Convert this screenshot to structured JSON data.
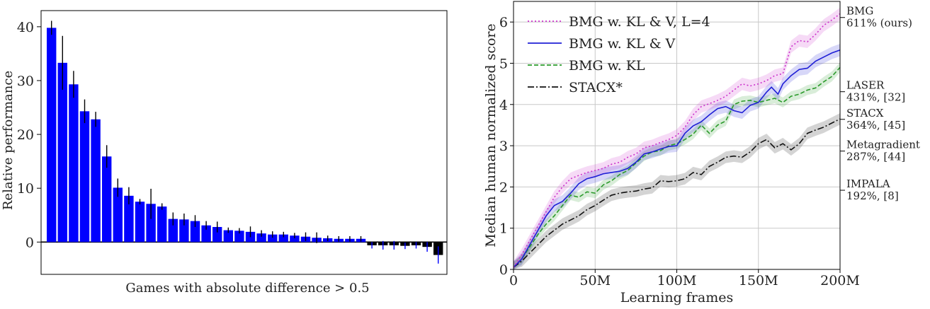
{
  "chart_data": [
    {
      "type": "bar",
      "title": "",
      "xlabel": "Games with absolute difference > 0.5",
      "ylabel": "Relative performance",
      "ylim": [
        -6,
        43
      ],
      "yticks": [
        0,
        10,
        20,
        30,
        40
      ],
      "grid": false,
      "bar_color": "#0000ff",
      "negative_bar_color": "#000000",
      "error_color": "#000000",
      "negative_error_color": "#0000ff",
      "values": [
        39.8,
        33.3,
        29.3,
        24.3,
        22.8,
        15.9,
        10.1,
        8.6,
        7.5,
        7.1,
        6.6,
        4.3,
        4.2,
        3.9,
        3.1,
        2.8,
        2.2,
        2.1,
        1.9,
        1.6,
        1.4,
        1.4,
        1.2,
        1.0,
        0.8,
        0.7,
        0.6,
        0.6,
        0.6,
        -0.6,
        -0.6,
        -0.6,
        -0.7,
        -0.6,
        -0.9,
        -2.4
      ],
      "errors": [
        1.3,
        5.0,
        2.5,
        2.2,
        1.4,
        2.1,
        1.7,
        1.6,
        0.5,
        2.8,
        0.6,
        1.2,
        1.1,
        1.1,
        0.8,
        1.0,
        0.5,
        0.5,
        1.0,
        0.6,
        0.6,
        0.5,
        0.5,
        0.8,
        1.0,
        0.5,
        0.5,
        0.5,
        0.5,
        0.6,
        0.8,
        0.8,
        0.6,
        0.6,
        0.9,
        1.6
      ]
    },
    {
      "type": "line",
      "title": "",
      "xlabel": "Learning frames",
      "ylabel": "Median human normalized score",
      "xlim": [
        0,
        200
      ],
      "ylim": [
        0,
        6.5
      ],
      "xticks": [
        0,
        50,
        100,
        150,
        200
      ],
      "xtick_labels": [
        "0",
        "50M",
        "100M",
        "150M",
        "200M"
      ],
      "yticks": [
        0,
        1,
        2,
        3,
        4,
        5,
        6
      ],
      "grid": true,
      "legend_position": "top-left",
      "series": [
        {
          "name": "BMG w. KL & V, L=4",
          "color": "#cc33cc",
          "dash": "dotted",
          "band": 0.15,
          "points": [
            [
              0,
              0.05
            ],
            [
              5,
              0.35
            ],
            [
              10,
              0.7
            ],
            [
              15,
              1.05
            ],
            [
              20,
              1.4
            ],
            [
              25,
              1.75
            ],
            [
              30,
              2.0
            ],
            [
              35,
              2.2
            ],
            [
              40,
              2.28
            ],
            [
              45,
              2.35
            ],
            [
              50,
              2.4
            ],
            [
              55,
              2.45
            ],
            [
              60,
              2.55
            ],
            [
              65,
              2.6
            ],
            [
              70,
              2.72
            ],
            [
              75,
              2.8
            ],
            [
              80,
              2.95
            ],
            [
              85,
              3.0
            ],
            [
              90,
              3.08
            ],
            [
              95,
              3.15
            ],
            [
              100,
              3.25
            ],
            [
              105,
              3.45
            ],
            [
              110,
              3.75
            ],
            [
              115,
              3.95
            ],
            [
              120,
              4.02
            ],
            [
              125,
              4.1
            ],
            [
              130,
              4.2
            ],
            [
              135,
              4.35
            ],
            [
              140,
              4.5
            ],
            [
              145,
              4.45
            ],
            [
              150,
              4.5
            ],
            [
              155,
              4.58
            ],
            [
              160,
              4.7
            ],
            [
              165,
              4.75
            ],
            [
              170,
              5.4
            ],
            [
              175,
              5.55
            ],
            [
              180,
              5.52
            ],
            [
              185,
              5.7
            ],
            [
              190,
              5.92
            ],
            [
              195,
              6.05
            ],
            [
              200,
              6.2
            ]
          ]
        },
        {
          "name": "BMG w. KL & V",
          "color": "#1f1fd6",
          "dash": "solid",
          "band": 0.15,
          "points": [
            [
              0,
              0.05
            ],
            [
              5,
              0.25
            ],
            [
              10,
              0.6
            ],
            [
              15,
              0.95
            ],
            [
              20,
              1.3
            ],
            [
              25,
              1.55
            ],
            [
              30,
              1.65
            ],
            [
              35,
              1.85
            ],
            [
              40,
              2.08
            ],
            [
              45,
              2.2
            ],
            [
              50,
              2.25
            ],
            [
              55,
              2.32
            ],
            [
              60,
              2.35
            ],
            [
              65,
              2.38
            ],
            [
              70,
              2.45
            ],
            [
              75,
              2.6
            ],
            [
              80,
              2.8
            ],
            [
              85,
              2.85
            ],
            [
              90,
              2.92
            ],
            [
              95,
              2.98
            ],
            [
              100,
              3.0
            ],
            [
              105,
              3.3
            ],
            [
              110,
              3.48
            ],
            [
              115,
              3.58
            ],
            [
              120,
              3.75
            ],
            [
              125,
              3.9
            ],
            [
              130,
              3.95
            ],
            [
              135,
              3.85
            ],
            [
              140,
              3.8
            ],
            [
              145,
              3.98
            ],
            [
              150,
              4.05
            ],
            [
              155,
              4.3
            ],
            [
              158,
              4.42
            ],
            [
              162,
              4.25
            ],
            [
              165,
              4.5
            ],
            [
              170,
              4.7
            ],
            [
              175,
              4.85
            ],
            [
              180,
              4.88
            ],
            [
              185,
              5.05
            ],
            [
              190,
              5.15
            ],
            [
              195,
              5.25
            ],
            [
              200,
              5.32
            ]
          ]
        },
        {
          "name": "BMG w. KL",
          "color": "#2a9a2a",
          "dash": "dashed",
          "band": 0.12,
          "points": [
            [
              0,
              0.05
            ],
            [
              5,
              0.25
            ],
            [
              10,
              0.55
            ],
            [
              15,
              0.85
            ],
            [
              20,
              1.1
            ],
            [
              25,
              1.3
            ],
            [
              30,
              1.55
            ],
            [
              35,
              1.8
            ],
            [
              40,
              1.75
            ],
            [
              45,
              1.88
            ],
            [
              50,
              1.85
            ],
            [
              55,
              2.05
            ],
            [
              60,
              2.15
            ],
            [
              65,
              2.3
            ],
            [
              70,
              2.4
            ],
            [
              75,
              2.58
            ],
            [
              80,
              2.75
            ],
            [
              85,
              2.85
            ],
            [
              90,
              2.88
            ],
            [
              95,
              3.0
            ],
            [
              100,
              3.05
            ],
            [
              105,
              3.15
            ],
            [
              110,
              3.28
            ],
            [
              115,
              3.5
            ],
            [
              120,
              3.3
            ],
            [
              125,
              3.5
            ],
            [
              130,
              3.6
            ],
            [
              135,
              4.0
            ],
            [
              140,
              4.08
            ],
            [
              145,
              4.1
            ],
            [
              150,
              4.05
            ],
            [
              155,
              4.1
            ],
            [
              160,
              4.15
            ],
            [
              165,
              4.05
            ],
            [
              170,
              4.2
            ],
            [
              175,
              4.25
            ],
            [
              180,
              4.35
            ],
            [
              185,
              4.4
            ],
            [
              190,
              4.55
            ],
            [
              195,
              4.68
            ],
            [
              200,
              4.9
            ]
          ]
        },
        {
          "name": "STACX*",
          "color": "#111111",
          "dash": "dashdot",
          "band": 0.14,
          "points": [
            [
              0,
              0.05
            ],
            [
              5,
              0.2
            ],
            [
              10,
              0.4
            ],
            [
              15,
              0.6
            ],
            [
              20,
              0.8
            ],
            [
              25,
              0.95
            ],
            [
              30,
              1.1
            ],
            [
              35,
              1.2
            ],
            [
              40,
              1.3
            ],
            [
              45,
              1.45
            ],
            [
              50,
              1.55
            ],
            [
              55,
              1.68
            ],
            [
              60,
              1.8
            ],
            [
              65,
              1.85
            ],
            [
              70,
              1.88
            ],
            [
              75,
              1.9
            ],
            [
              80,
              1.95
            ],
            [
              85,
              1.98
            ],
            [
              90,
              2.15
            ],
            [
              95,
              2.13
            ],
            [
              100,
              2.15
            ],
            [
              105,
              2.2
            ],
            [
              110,
              2.35
            ],
            [
              115,
              2.3
            ],
            [
              120,
              2.5
            ],
            [
              125,
              2.6
            ],
            [
              130,
              2.72
            ],
            [
              135,
              2.75
            ],
            [
              140,
              2.72
            ],
            [
              145,
              2.85
            ],
            [
              150,
              3.05
            ],
            [
              155,
              3.15
            ],
            [
              160,
              2.95
            ],
            [
              165,
              3.05
            ],
            [
              170,
              2.9
            ],
            [
              175,
              3.05
            ],
            [
              180,
              3.3
            ],
            [
              185,
              3.38
            ],
            [
              190,
              3.45
            ],
            [
              195,
              3.55
            ],
            [
              200,
              3.65
            ]
          ]
        }
      ],
      "annotations": [
        {
          "line1": "BMG",
          "line2": "611% (ours)",
          "y": 6.11
        },
        {
          "line1": "LASER",
          "line2": "431%, [32]",
          "y": 4.31
        },
        {
          "line1": "STACX",
          "line2": "364%, [45]",
          "y": 3.64
        },
        {
          "line1": "Metagradient",
          "line2": "287%, [44]",
          "y": 2.87
        },
        {
          "line1": "IMPALA",
          "line2": "192%, [8]",
          "y": 1.92
        }
      ]
    }
  ]
}
